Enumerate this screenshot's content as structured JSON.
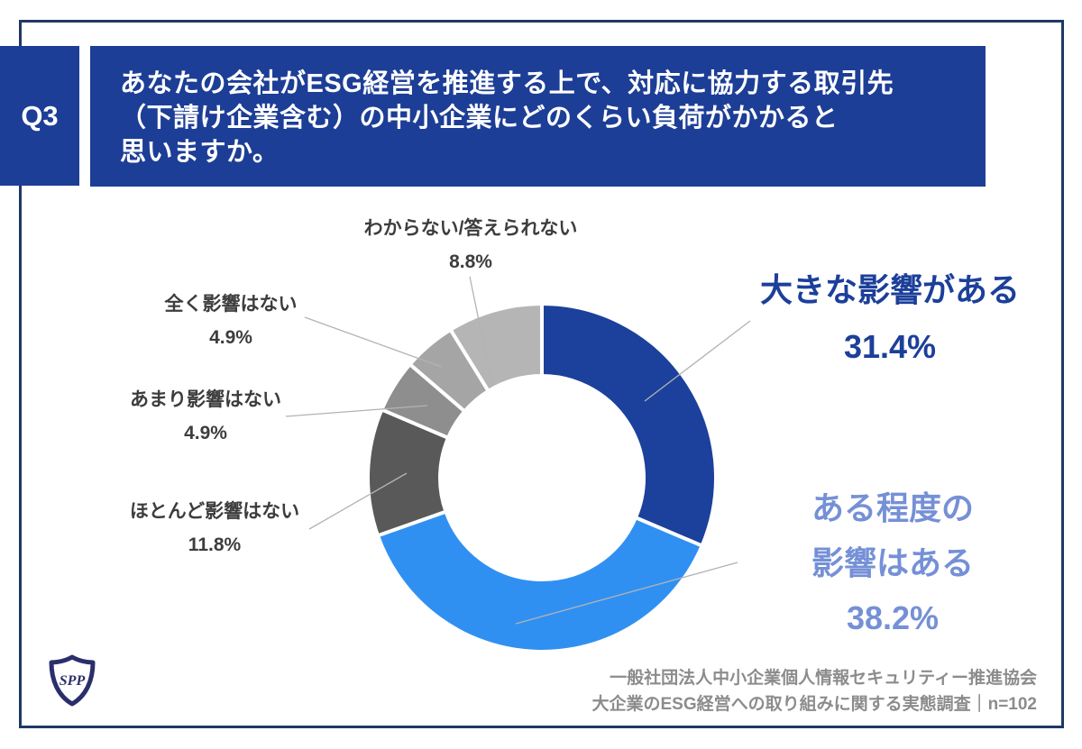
{
  "question": {
    "number": "Q3",
    "text_lines": [
      "あなたの会社がESG経営を推進する上で、対応に協力する取引先",
      "（下請け企業含む）の中小企業にどのくらい負荷がかかると",
      "思いますか。"
    ]
  },
  "chart_data": {
    "type": "pie",
    "subtype": "donut",
    "title": "",
    "unit": "%",
    "start_angle_deg": 0,
    "direction": "clockwise",
    "legend_position": "callout-labels",
    "segments": [
      {
        "label": "大きな影響がある",
        "value": 31.4,
        "color": "#1c419c"
      },
      {
        "label": "ある程度の影響はある",
        "value": 38.2,
        "color": "#3090f2"
      },
      {
        "label": "ほとんど影響はない",
        "value": 11.8,
        "color": "#595959"
      },
      {
        "label": "あまり影響はない",
        "value": 4.9,
        "color": "#8e8e8e"
      },
      {
        "label": "全く影響はない",
        "value": 4.9,
        "color": "#a5a5a5"
      },
      {
        "label": "わからない/答えられない",
        "value": 8.8,
        "color": "#b5b5b5"
      }
    ]
  },
  "callouts": [
    {
      "lines": [
        "大きな影響がある"
      ],
      "pct": "31.4%"
    },
    {
      "lines": [
        "ある程度の",
        "影響はある"
      ],
      "pct": "38.2%"
    },
    {
      "lines": [
        "ほとんど影響はない"
      ],
      "pct": "11.8%"
    },
    {
      "lines": [
        "あまり影響はない"
      ],
      "pct": "4.9%"
    },
    {
      "lines": [
        "全く影響はない"
      ],
      "pct": "4.9%"
    },
    {
      "lines": [
        "わからない/答えられない"
      ],
      "pct": "8.8%"
    }
  ],
  "footer": {
    "line1": "一般社団法人中小企業個人情報セキュリティー推進協会",
    "line2": "大企業のESG経営への取り組みに関する実態調査｜n=102"
  },
  "logo": {
    "text": "SPP"
  },
  "colors": {
    "banner_bg": "#1d3e96",
    "frame_border": "#1f3865",
    "accent_label_dark": "#1c3f9a",
    "accent_label_light": "#7590d6",
    "gray_label": "#3d3d3d",
    "footer_text": "#8c8c8c",
    "leader_line": "#b3b3b3"
  }
}
